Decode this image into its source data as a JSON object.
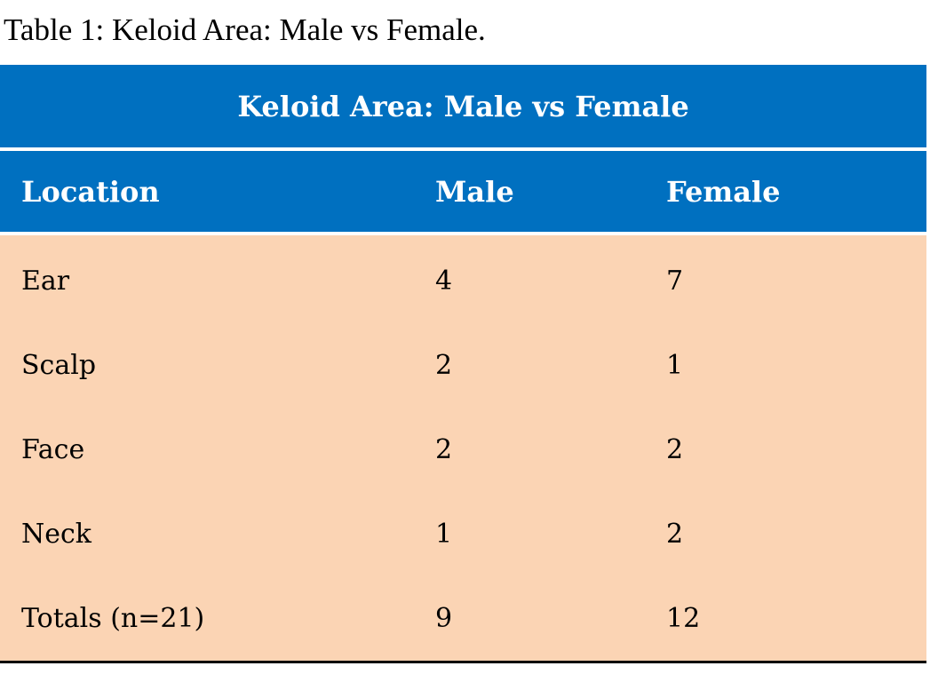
{
  "caption": "Table 1: Keloid Area: Male vs Female.",
  "table": {
    "title": "Keloid Area: Male vs Female",
    "headers": [
      "Location",
      "Male",
      "Female"
    ],
    "rows": [
      [
        "Ear",
        "4",
        "7"
      ],
      [
        "Scalp",
        "2",
        "1"
      ],
      [
        "Face",
        "2",
        "2"
      ],
      [
        "Neck",
        "1",
        "2"
      ],
      [
        "Totals (n=21)",
        "9",
        "12"
      ]
    ]
  },
  "colors": {
    "header_bg": "#0070C0",
    "body_bg": "#FBD4B4",
    "header_text": "#FFFFFF"
  }
}
